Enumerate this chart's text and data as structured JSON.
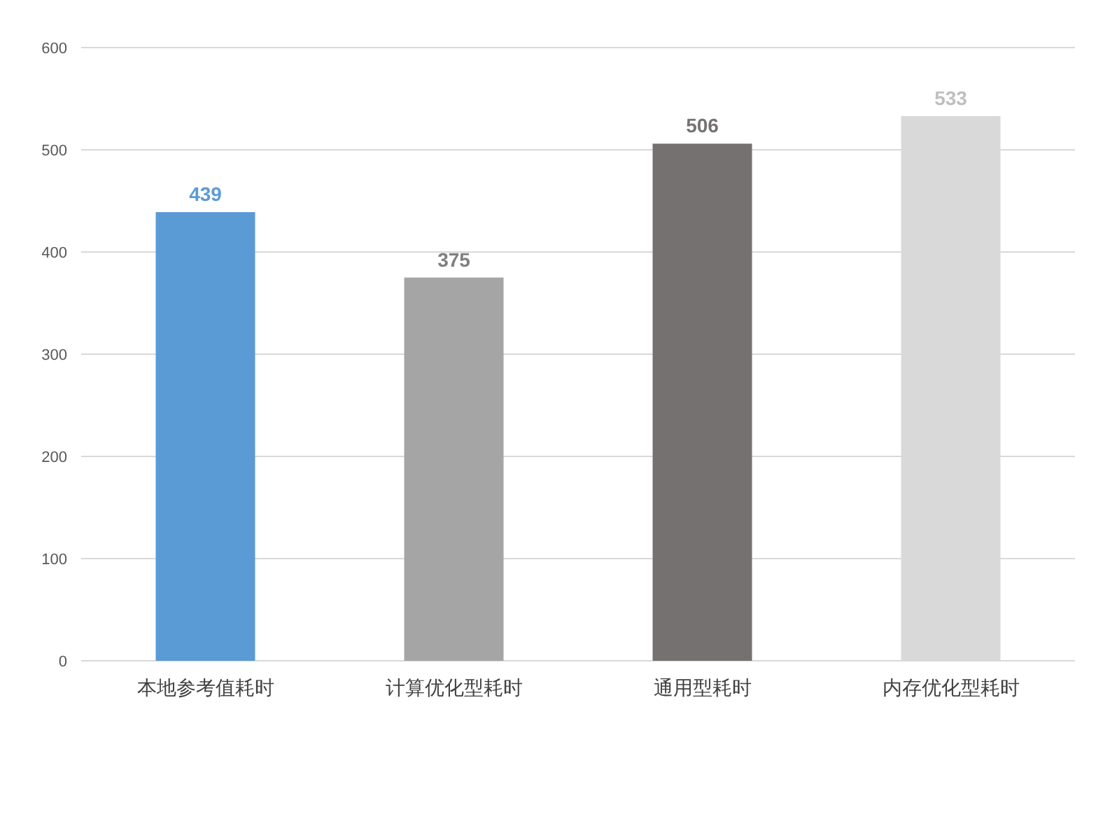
{
  "chart_data": {
    "type": "bar",
    "categories": [
      "本地参考值耗时",
      "计算优化型耗时",
      "通用型耗时",
      "内存优化型耗时"
    ],
    "values": [
      439,
      375,
      506,
      533
    ],
    "colors": [
      "#5b9bd5",
      "#a5a5a5",
      "#767171",
      "#d9d9d9"
    ],
    "ylim": [
      0,
      600
    ],
    "yticks": [
      0,
      100,
      200,
      300,
      400,
      500,
      600
    ],
    "grid": "y",
    "data_labels": true
  }
}
